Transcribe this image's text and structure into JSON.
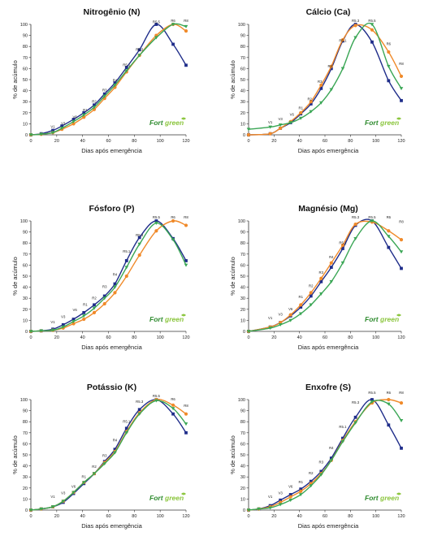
{
  "colors": {
    "s1": "#1f2d8a",
    "s2": "#f08a2a",
    "s3": "#3aa655",
    "axis": "#333333",
    "logo_dark": "#2e8b2e",
    "logo_light": "#8cc63f"
  },
  "logo": {
    "fort": "Fort",
    "green": "green"
  },
  "chart_data": [
    {
      "type": "line",
      "title": "Nitrogênio (N)",
      "xlabel": "Dias após emergência",
      "ylabel": "% de acúmulo",
      "xlim": [
        0,
        120
      ],
      "ylim": [
        0,
        100
      ],
      "xticks": [
        0,
        20,
        40,
        60,
        80,
        100,
        120
      ],
      "yticks": [
        0,
        10,
        20,
        30,
        40,
        50,
        60,
        70,
        80,
        90,
        100
      ],
      "x": [
        0,
        8,
        17,
        24,
        33,
        41,
        49,
        57,
        65,
        74,
        84,
        97,
        110,
        120
      ],
      "stages": [
        {
          "label": "V1",
          "x": 17,
          "y": 4
        },
        {
          "label": "V3",
          "x": 25,
          "y": 7
        },
        {
          "label": "V6",
          "x": 34,
          "y": 13
        },
        {
          "label": "R1",
          "x": 42,
          "y": 19
        },
        {
          "label": "R2",
          "x": 49,
          "y": 27
        },
        {
          "label": "R3",
          "x": 57,
          "y": 37
        },
        {
          "label": "R4",
          "x": 65,
          "y": 46
        },
        {
          "label": "R5.1",
          "x": 74,
          "y": 60
        },
        {
          "label": "R5.3",
          "x": 84,
          "y": 74
        },
        {
          "label": "R5.5",
          "x": 97,
          "y": 99
        },
        {
          "label": "R6",
          "x": 110,
          "y": 100
        },
        {
          "label": "R8",
          "x": 120,
          "y": 100
        }
      ],
      "series": [
        {
          "values": [
            0,
            1,
            4,
            8,
            14,
            20,
            27,
            37,
            47,
            61,
            77,
            100,
            82,
            63
          ]
        },
        {
          "values": [
            0,
            0.5,
            2,
            5,
            10,
            16,
            23,
            33,
            43,
            57,
            72,
            90,
            100,
            94
          ]
        },
        {
          "values": [
            0,
            0.5,
            2,
            6,
            12,
            18,
            25,
            35,
            45,
            58,
            72,
            88,
            100,
            98
          ]
        }
      ]
    },
    {
      "type": "line",
      "title": "Cálcio (Ca)",
      "xlabel": "Dias após emergência",
      "ylabel": "% de acúmulo",
      "xlim": [
        0,
        120
      ],
      "ylim": [
        0,
        100
      ],
      "xticks": [
        0,
        20,
        40,
        60,
        80,
        100,
        120
      ],
      "yticks": [
        0,
        10,
        20,
        30,
        40,
        50,
        60,
        70,
        80,
        90,
        100
      ],
      "x": [
        0,
        17,
        25,
        33,
        41,
        49,
        57,
        65,
        74,
        84,
        97,
        110,
        120
      ],
      "stages": [
        {
          "label": "V1",
          "x": 17,
          "y": 8
        },
        {
          "label": "V3",
          "x": 25,
          "y": 11
        },
        {
          "label": "V6",
          "x": 34,
          "y": 15
        },
        {
          "label": "R1",
          "x": 41,
          "y": 21
        },
        {
          "label": "R2",
          "x": 48,
          "y": 29
        },
        {
          "label": "R3",
          "x": 56,
          "y": 45
        },
        {
          "label": "R4",
          "x": 64,
          "y": 59
        },
        {
          "label": "R5.1",
          "x": 74,
          "y": 82
        },
        {
          "label": "R5.3",
          "x": 84,
          "y": 100
        },
        {
          "label": "R5.5",
          "x": 97,
          "y": 100
        },
        {
          "label": "R6",
          "x": 110,
          "y": 79
        },
        {
          "label": "R8",
          "x": 120,
          "y": 61
        }
      ],
      "series": [
        {
          "values": [
            0,
            1,
            6,
            11,
            19,
            28,
            42,
            60,
            85,
            100,
            84,
            49,
            31
          ]
        },
        {
          "values": [
            0,
            1,
            6,
            12,
            20,
            30,
            45,
            62,
            86,
            99,
            95,
            75,
            53
          ]
        },
        {
          "values": [
            5,
            7,
            9,
            11,
            15,
            21,
            29,
            41,
            60,
            88,
            100,
            62,
            42
          ]
        }
      ]
    },
    {
      "type": "line",
      "title": "Fósforo (P)",
      "xlabel": "Dias após emergência",
      "ylabel": "% de acúmulo",
      "xlim": [
        0,
        120
      ],
      "ylim": [
        0,
        100
      ],
      "xticks": [
        0,
        20,
        40,
        60,
        80,
        100,
        120
      ],
      "yticks": [
        0,
        10,
        20,
        30,
        40,
        50,
        60,
        70,
        80,
        90,
        100
      ],
      "x": [
        0,
        8,
        17,
        25,
        33,
        41,
        49,
        57,
        65,
        74,
        84,
        97,
        110,
        120
      ],
      "stages": [
        {
          "label": "V1",
          "x": 17,
          "y": 5
        },
        {
          "label": "V3",
          "x": 25,
          "y": 10
        },
        {
          "label": "V6",
          "x": 34,
          "y": 16
        },
        {
          "label": "R1",
          "x": 42,
          "y": 21
        },
        {
          "label": "R2",
          "x": 49,
          "y": 27
        },
        {
          "label": "R3",
          "x": 57,
          "y": 37
        },
        {
          "label": "R4",
          "x": 65,
          "y": 48
        },
        {
          "label": "R5.1",
          "x": 74,
          "y": 69
        },
        {
          "label": "R5.3",
          "x": 84,
          "y": 84
        },
        {
          "label": "R5.5",
          "x": 97,
          "y": 100
        },
        {
          "label": "R6",
          "x": 110,
          "y": 100
        },
        {
          "label": "R8",
          "x": 120,
          "y": 100
        }
      ],
      "series": [
        {
          "values": [
            0,
            0.5,
            2,
            6,
            11,
            17,
            24,
            32,
            43,
            64,
            85,
            100,
            84,
            64
          ]
        },
        {
          "values": [
            0,
            0.5,
            1,
            3,
            7,
            11,
            17,
            25,
            35,
            50,
            69,
            91,
            100,
            96
          ]
        },
        {
          "values": [
            0,
            0.5,
            1,
            4,
            9,
            14,
            21,
            30,
            40,
            58,
            79,
            98,
            83,
            60
          ]
        }
      ]
    },
    {
      "type": "line",
      "title": "Magnésio (Mg)",
      "xlabel": "Dias após emergência",
      "ylabel": "% de acúmulo",
      "xlim": [
        0,
        120
      ],
      "ylim": [
        0,
        100
      ],
      "xticks": [
        0,
        20,
        40,
        60,
        80,
        100,
        120
      ],
      "yticks": [
        0,
        10,
        20,
        30,
        40,
        50,
        60,
        70,
        80,
        90,
        100
      ],
      "x": [
        0,
        17,
        25,
        33,
        41,
        49,
        57,
        65,
        74,
        84,
        97,
        110,
        120
      ],
      "stages": [
        {
          "label": "V1",
          "x": 17,
          "y": 9
        },
        {
          "label": "V3",
          "x": 25,
          "y": 12
        },
        {
          "label": "V6",
          "x": 33,
          "y": 17
        },
        {
          "label": "R1",
          "x": 41,
          "y": 28
        },
        {
          "label": "R2",
          "x": 49,
          "y": 38
        },
        {
          "label": "R3",
          "x": 57,
          "y": 50
        },
        {
          "label": "R4",
          "x": 65,
          "y": 64
        },
        {
          "label": "R5.1",
          "x": 74,
          "y": 77
        },
        {
          "label": "R5.3",
          "x": 84,
          "y": 100
        },
        {
          "label": "R5.5",
          "x": 97,
          "y": 100
        },
        {
          "label": "R6",
          "x": 110,
          "y": 100
        },
        {
          "label": "R8",
          "x": 120,
          "y": 96
        }
      ],
      "series": [
        {
          "values": [
            0,
            4,
            8,
            14,
            22,
            32,
            45,
            58,
            75,
            96,
            100,
            76,
            57
          ]
        },
        {
          "values": [
            0,
            4,
            8,
            15,
            24,
            35,
            48,
            62,
            78,
            97,
            99,
            91,
            83
          ]
        },
        {
          "values": [
            0,
            3,
            6,
            10,
            16,
            24,
            34,
            45,
            62,
            84,
            100,
            86,
            72
          ]
        }
      ]
    },
    {
      "type": "line",
      "title": "Potássio (K)",
      "xlabel": "Dias após emergência",
      "ylabel": "% de acúmulo",
      "xlim": [
        0,
        120
      ],
      "ylim": [
        0,
        100
      ],
      "xticks": [
        0,
        20,
        40,
        60,
        80,
        100,
        120
      ],
      "yticks": [
        0,
        10,
        20,
        30,
        40,
        50,
        60,
        70,
        80,
        90,
        100
      ],
      "x": [
        0,
        8,
        17,
        25,
        33,
        41,
        49,
        57,
        65,
        74,
        84,
        97,
        110,
        120
      ],
      "stages": [
        {
          "label": "V1",
          "x": 17,
          "y": 9
        },
        {
          "label": "V3",
          "x": 25,
          "y": 12
        },
        {
          "label": "V6",
          "x": 33,
          "y": 18
        },
        {
          "label": "R1",
          "x": 41,
          "y": 27
        },
        {
          "label": "R2",
          "x": 49,
          "y": 36
        },
        {
          "label": "R3",
          "x": 57,
          "y": 46
        },
        {
          "label": "R4",
          "x": 65,
          "y": 60
        },
        {
          "label": "R5.1",
          "x": 74,
          "y": 77
        },
        {
          "label": "R5.3",
          "x": 84,
          "y": 95
        },
        {
          "label": "R5.5",
          "x": 97,
          "y": 100
        },
        {
          "label": "R6",
          "x": 110,
          "y": 97
        },
        {
          "label": "R8",
          "x": 120,
          "y": 91
        }
      ],
      "series": [
        {
          "values": [
            0,
            1,
            3,
            7,
            15,
            24,
            33,
            44,
            55,
            74,
            91,
            100,
            87,
            70
          ]
        },
        {
          "values": [
            0,
            1,
            3,
            8,
            16,
            25,
            33,
            43,
            53,
            71,
            88,
            100,
            95,
            87
          ]
        },
        {
          "values": [
            0,
            1,
            3,
            8,
            16,
            25,
            33,
            42,
            52,
            70,
            87,
            99,
            92,
            78
          ]
        }
      ]
    },
    {
      "type": "line",
      "title": "Enxofre (S)",
      "xlabel": "Dias após emergência",
      "ylabel": "% de acúmulo",
      "xlim": [
        0,
        120
      ],
      "ylim": [
        0,
        100
      ],
      "xticks": [
        0,
        20,
        40,
        60,
        80,
        100,
        120
      ],
      "yticks": [
        0,
        10,
        20,
        30,
        40,
        50,
        60,
        70,
        80,
        90,
        100
      ],
      "x": [
        0,
        8,
        17,
        25,
        33,
        41,
        49,
        57,
        65,
        74,
        84,
        97,
        110,
        120
      ],
      "stages": [
        {
          "label": "V1",
          "x": 17,
          "y": 9
        },
        {
          "label": "V3",
          "x": 25,
          "y": 12
        },
        {
          "label": "V6",
          "x": 33,
          "y": 18
        },
        {
          "label": "R1",
          "x": 41,
          "y": 22
        },
        {
          "label": "R2",
          "x": 49,
          "y": 30
        },
        {
          "label": "R3",
          "x": 57,
          "y": 40
        },
        {
          "label": "R4",
          "x": 65,
          "y": 53
        },
        {
          "label": "R5.1",
          "x": 74,
          "y": 72
        },
        {
          "label": "R5.3",
          "x": 84,
          "y": 94
        },
        {
          "label": "R5.5",
          "x": 97,
          "y": 103
        },
        {
          "label": "R6",
          "x": 110,
          "y": 103
        },
        {
          "label": "R8",
          "x": 120,
          "y": 103
        }
      ],
      "series": [
        {
          "values": [
            0,
            1,
            4,
            9,
            14,
            19,
            26,
            35,
            47,
            65,
            84,
            100,
            77,
            56
          ]
        },
        {
          "values": [
            0,
            1,
            3,
            7,
            12,
            17,
            24,
            33,
            45,
            63,
            80,
            97,
            100,
            97
          ]
        },
        {
          "values": [
            0,
            1,
            2,
            5,
            9,
            14,
            22,
            32,
            45,
            62,
            79,
            98,
            96,
            81
          ]
        }
      ]
    }
  ]
}
